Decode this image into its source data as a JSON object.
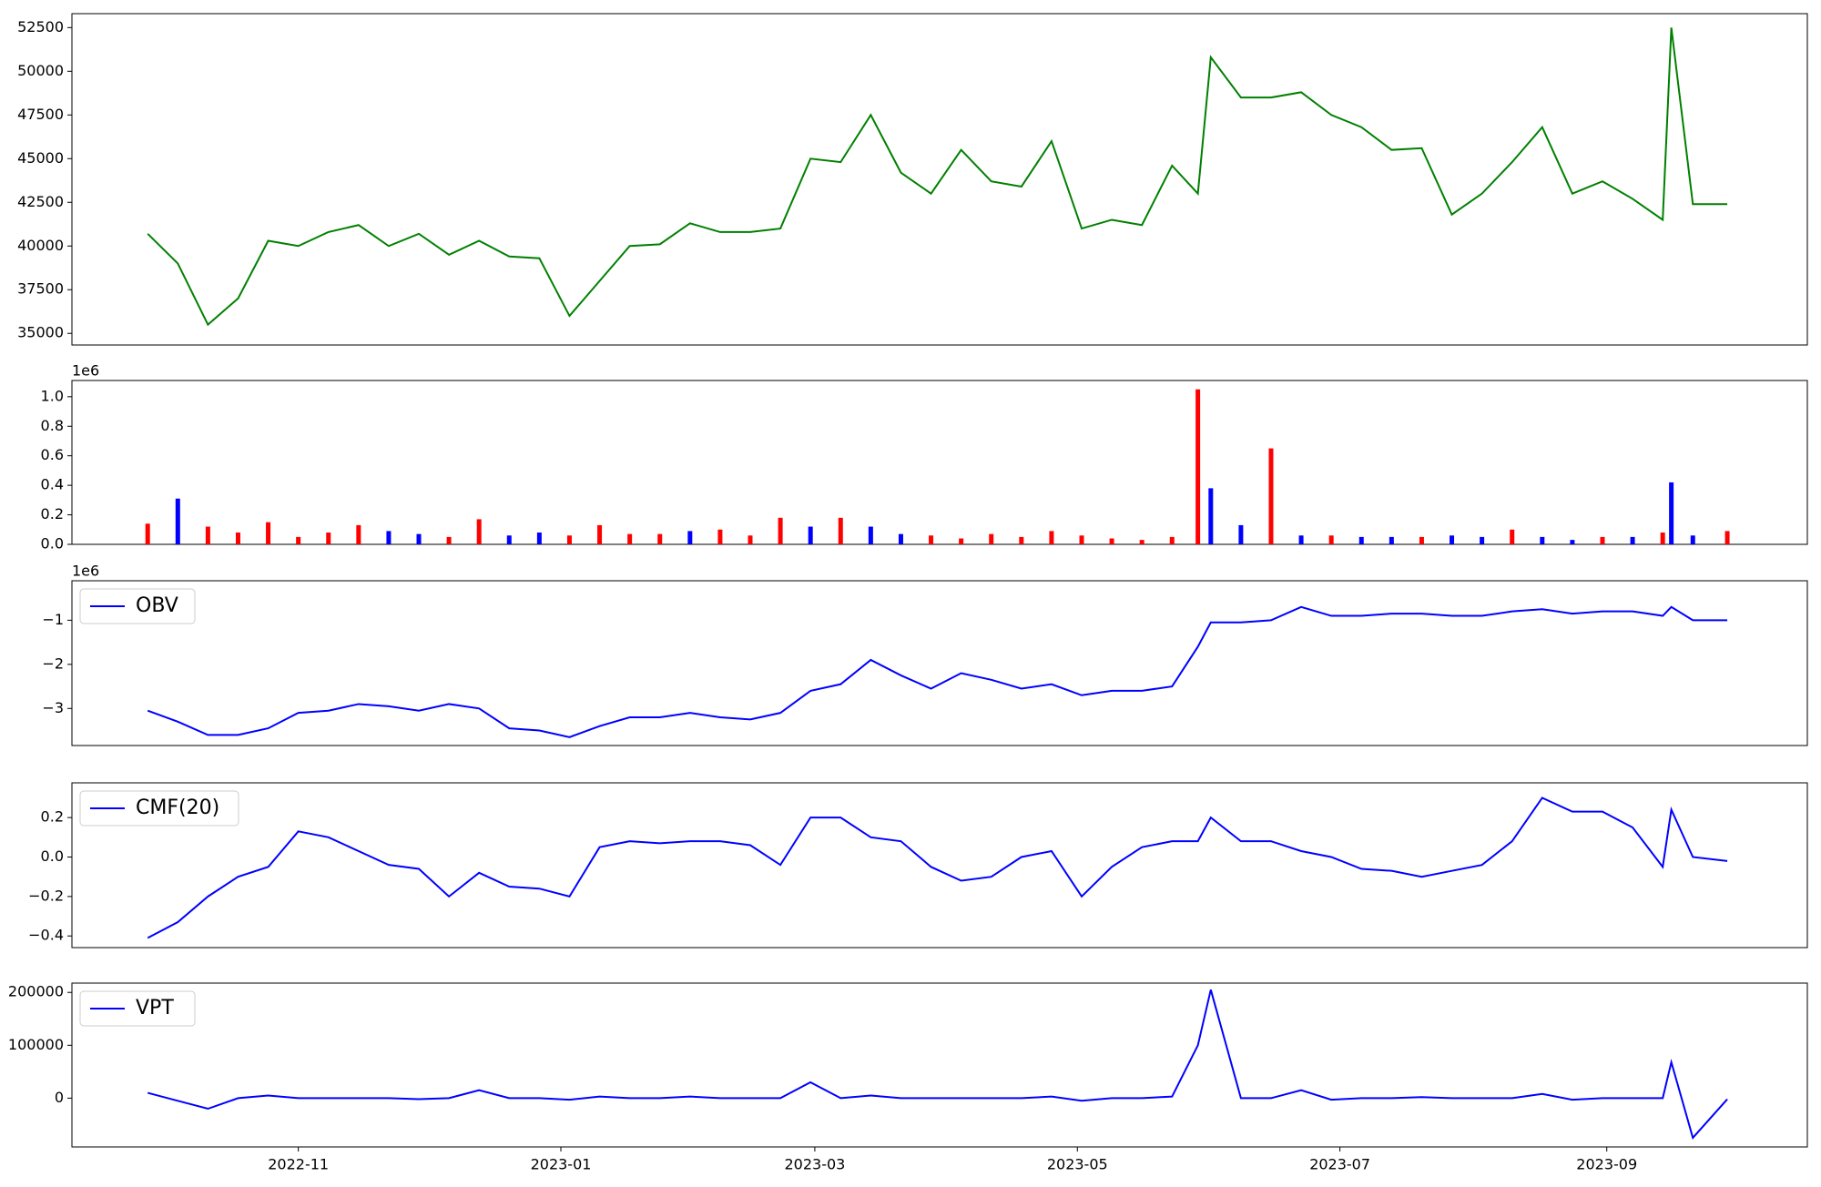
{
  "chart_data": [
    {
      "type": "line",
      "x": [
        -35,
        -28,
        -21,
        -14,
        -7,
        0,
        7,
        14,
        21,
        28,
        35,
        42,
        49,
        56,
        63,
        70,
        77,
        84,
        91,
        98,
        105,
        112,
        119,
        126,
        133,
        140,
        147,
        154,
        161,
        168,
        175,
        182,
        189,
        196,
        203,
        209,
        212,
        219,
        226,
        233,
        240,
        247,
        254,
        261,
        268,
        275,
        282,
        289,
        296,
        303,
        310,
        317,
        319,
        324,
        332
      ],
      "values": [
        40700,
        39000,
        35500,
        37000,
        40300,
        40000,
        40800,
        41200,
        40000,
        40700,
        39500,
        40300,
        39400,
        39300,
        36000,
        38000,
        40000,
        40100,
        41300,
        40800,
        40800,
        41000,
        45000,
        44800,
        47500,
        44200,
        43000,
        45500,
        43700,
        43400,
        46000,
        41000,
        41500,
        41200,
        44600,
        43000,
        50800,
        48500,
        48500,
        48800,
        47500,
        46800,
        45500,
        45600,
        41800,
        43000,
        44800,
        46800,
        43000,
        43700,
        42700,
        41500,
        52500,
        42400,
        42400
      ],
      "color": "green",
      "xlim": [
        -52.6,
        350.6
      ],
      "ylim": [
        34335,
        53298
      ],
      "yticks": [
        35000,
        37500,
        40000,
        42500,
        45000,
        47500,
        50000,
        52500
      ]
    },
    {
      "type": "bar",
      "x": [
        -35,
        -28,
        -21,
        -14,
        -7,
        0,
        7,
        14,
        21,
        28,
        35,
        42,
        49,
        56,
        63,
        70,
        77,
        84,
        91,
        98,
        105,
        112,
        119,
        126,
        133,
        140,
        147,
        154,
        161,
        168,
        175,
        182,
        189,
        196,
        203,
        209,
        212,
        219,
        226,
        233,
        240,
        247,
        254,
        261,
        268,
        275,
        282,
        289,
        296,
        303,
        310,
        317,
        319,
        324,
        332
      ],
      "values": [
        140000,
        310000,
        120000,
        80000,
        150000,
        50000,
        80000,
        130000,
        90000,
        70000,
        50000,
        170000,
        60000,
        80000,
        60000,
        130000,
        70000,
        70000,
        90000,
        100000,
        60000,
        180000,
        120000,
        180000,
        120000,
        70000,
        60000,
        40000,
        70000,
        50000,
        90000,
        60000,
        40000,
        30000,
        50000,
        1050000,
        380000,
        130000,
        650000,
        60000,
        60000,
        50000,
        50000,
        50000,
        60000,
        50000,
        100000,
        50000,
        30000,
        50000,
        50000,
        80000,
        420000,
        60000,
        90000
      ],
      "colors": [
        "red",
        "blue",
        "red",
        "red",
        "red",
        "red",
        "red",
        "red",
        "blue",
        "blue",
        "red",
        "red",
        "blue",
        "blue",
        "red",
        "red",
        "red",
        "red",
        "blue",
        "red",
        "red",
        "red",
        "blue",
        "red",
        "blue",
        "blue",
        "red",
        "red",
        "red",
        "red",
        "red",
        "red",
        "red",
        "red",
        "red",
        "red",
        "blue",
        "blue",
        "red",
        "blue",
        "red",
        "blue",
        "blue",
        "red",
        "blue",
        "blue",
        "red",
        "blue",
        "blue",
        "red",
        "blue",
        "red",
        "blue",
        "blue",
        "red"
      ],
      "xlim": [
        -52.6,
        350.6
      ],
      "ylim": [
        0,
        1110000
      ],
      "offset_label": "1e6",
      "yticks": [
        {
          "value": 0,
          "label": "0.0"
        },
        {
          "value": 200000,
          "label": "0.2"
        },
        {
          "value": 400000,
          "label": "0.4"
        },
        {
          "value": 600000,
          "label": "0.6"
        },
        {
          "value": 800000,
          "label": "0.8"
        },
        {
          "value": 1000000,
          "label": "1.0"
        }
      ]
    },
    {
      "type": "line",
      "x": [
        -35,
        -28,
        -21,
        -14,
        -7,
        0,
        7,
        14,
        21,
        28,
        35,
        42,
        49,
        56,
        63,
        70,
        77,
        84,
        91,
        98,
        105,
        112,
        119,
        126,
        133,
        140,
        147,
        154,
        161,
        168,
        175,
        182,
        189,
        196,
        203,
        209,
        212,
        219,
        226,
        233,
        240,
        247,
        254,
        261,
        268,
        275,
        282,
        289,
        296,
        303,
        310,
        317,
        319,
        324,
        332
      ],
      "series": [
        {
          "name": "OBV",
          "color": "blue",
          "values": [
            -3050000,
            -3300000,
            -3600000,
            -3600000,
            -3450000,
            -3100000,
            -3050000,
            -2900000,
            -2950000,
            -3050000,
            -2900000,
            -3000000,
            -3450000,
            -3500000,
            -3650000,
            -3400000,
            -3200000,
            -3200000,
            -3100000,
            -3200000,
            -3250000,
            -3100000,
            -2600000,
            -2450000,
            -1900000,
            -2250000,
            -2550000,
            -2200000,
            -2350000,
            -2550000,
            -2450000,
            -2700000,
            -2600000,
            -2600000,
            -2500000,
            -1600000,
            -1050000,
            -1050000,
            -1000000,
            -700000,
            -900000,
            -900000,
            -850000,
            -850000,
            -900000,
            -900000,
            -800000,
            -750000,
            -850000,
            -800000,
            -800000,
            -900000,
            -700000,
            -1000000,
            -1000000
          ]
        }
      ],
      "xlim": [
        -52.6,
        350.6
      ],
      "ylim": [
        -3840000,
        -105000
      ],
      "offset_label": "1e6",
      "yticks": [
        {
          "value": -3000000,
          "label": "−3"
        },
        {
          "value": -2000000,
          "label": "−2"
        },
        {
          "value": -1000000,
          "label": "−1"
        }
      ]
    },
    {
      "type": "line",
      "x": [
        -35,
        -28,
        -21,
        -14,
        -7,
        0,
        7,
        14,
        21,
        28,
        35,
        42,
        49,
        56,
        63,
        70,
        77,
        84,
        91,
        98,
        105,
        112,
        119,
        126,
        133,
        140,
        147,
        154,
        161,
        168,
        175,
        182,
        189,
        196,
        203,
        209,
        212,
        219,
        226,
        233,
        240,
        247,
        254,
        261,
        268,
        275,
        282,
        289,
        296,
        303,
        310,
        317,
        319,
        324,
        332
      ],
      "series": [
        {
          "name": "CMF(20)",
          "color": "blue",
          "values": [
            -0.41,
            -0.33,
            -0.2,
            -0.1,
            -0.05,
            0.13,
            0.1,
            0.03,
            -0.04,
            -0.06,
            -0.2,
            -0.08,
            -0.15,
            -0.16,
            -0.2,
            0.05,
            0.08,
            0.07,
            0.08,
            0.08,
            0.06,
            -0.04,
            0.2,
            0.2,
            0.1,
            0.08,
            -0.05,
            -0.12,
            -0.1,
            0.0,
            0.03,
            -0.2,
            -0.05,
            0.05,
            0.08,
            0.08,
            0.2,
            0.08,
            0.08,
            0.03,
            0.0,
            -0.06,
            -0.07,
            -0.1,
            -0.07,
            -0.04,
            0.08,
            0.3,
            0.23,
            0.23,
            0.15,
            -0.05,
            0.24,
            0.0,
            -0.02
          ]
        }
      ],
      "xlim": [
        -52.6,
        350.6
      ],
      "ylim": [
        -0.459,
        0.376
      ],
      "yticks": [
        {
          "value": -0.4,
          "label": "−0.4"
        },
        {
          "value": -0.2,
          "label": "−0.2"
        },
        {
          "value": 0,
          "label": "0.0"
        },
        0.2
      ]
    },
    {
      "type": "line",
      "x": [
        -35,
        -28,
        -21,
        -14,
        -7,
        0,
        7,
        14,
        21,
        28,
        35,
        42,
        49,
        56,
        63,
        70,
        77,
        84,
        91,
        98,
        105,
        112,
        119,
        126,
        133,
        140,
        147,
        154,
        161,
        168,
        175,
        182,
        189,
        196,
        203,
        209,
        212,
        219,
        226,
        233,
        240,
        247,
        254,
        261,
        268,
        275,
        282,
        289,
        296,
        303,
        310,
        317,
        319,
        324,
        332
      ],
      "series": [
        {
          "name": "VPT",
          "color": "blue",
          "values": [
            10000,
            -5000,
            -20000,
            0,
            5000,
            0,
            0,
            0,
            0,
            -2000,
            0,
            15000,
            0,
            0,
            -3000,
            3000,
            0,
            0,
            3000,
            0,
            0,
            0,
            30000,
            0,
            5000,
            0,
            0,
            0,
            0,
            0,
            3000,
            -5000,
            0,
            0,
            3000,
            100000,
            205000,
            0,
            0,
            15000,
            -3000,
            0,
            0,
            2000,
            0,
            0,
            0,
            8000,
            -3000,
            0,
            0,
            0,
            68000,
            -75000,
            -2000
          ]
        }
      ],
      "xlim": [
        -52.6,
        350.6
      ],
      "ylim": [
        -92300,
        217600
      ],
      "yticks": [
        0,
        100000,
        200000
      ],
      "xticks": [
        {
          "value": 0,
          "label": "2022-11"
        },
        {
          "value": 61,
          "label": "2023-01"
        },
        {
          "value": 120,
          "label": "2023-03"
        },
        {
          "value": 181,
          "label": "2023-05"
        },
        {
          "value": 242,
          "label": "2023-07"
        },
        {
          "value": 304,
          "label": "2023-09"
        }
      ]
    }
  ]
}
